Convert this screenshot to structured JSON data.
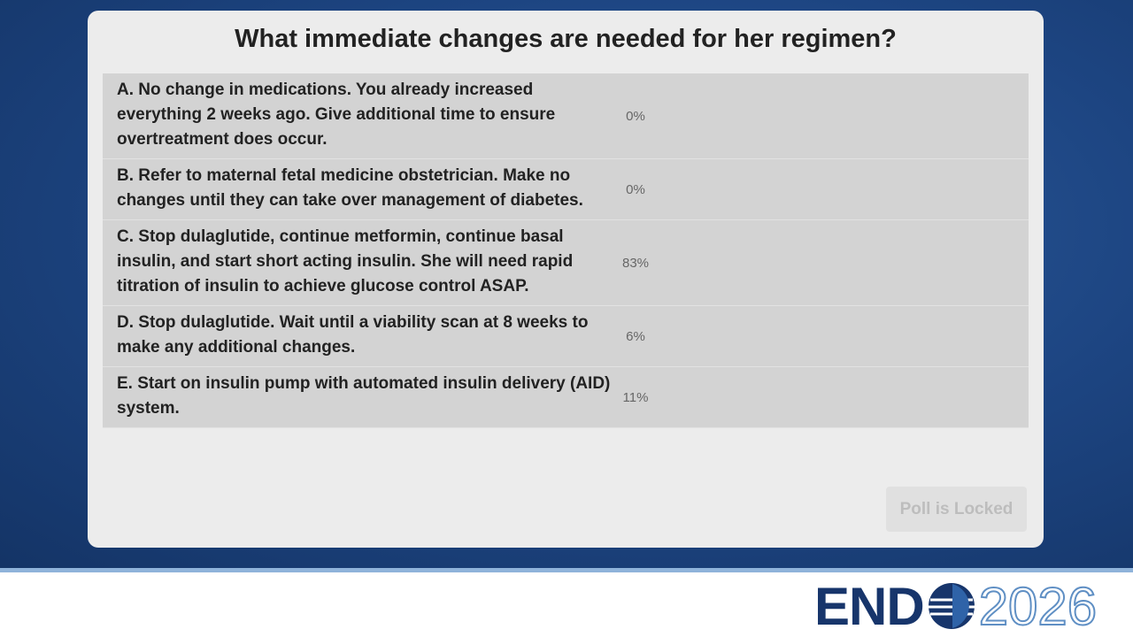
{
  "chart_data": {
    "type": "bar",
    "orientation": "horizontal",
    "title": "What immediate changes are needed for her regimen?",
    "categories": [
      "A. No change in medications. You already increased everything 2 weeks ago. Give additional time to ensure overtreatment does occur.",
      "B. Refer to maternal fetal medicine obstetrician. Make no changes until they can take over management of diabetes.",
      "C. Stop dulaglutide, continue metformin, continue basal insulin, and start short acting insulin. She will need rapid titration of insulin to achieve glucose control ASAP.",
      "D. Stop dulaglutide. Wait until a viability scan at 8 weeks to make any additional changes.",
      "E. Start on insulin pump with automated insulin delivery (AID) system."
    ],
    "values": [
      0,
      0,
      83,
      6,
      11
    ],
    "value_labels": [
      "0%",
      "0%",
      "83%",
      "6%",
      "11%"
    ],
    "colors": [
      "#c9b23a",
      "#2f8a34",
      "#b0223a",
      "#4a22ea",
      "#7a1cb8"
    ]
  },
  "button": "Poll is Locked",
  "logo": {
    "word": "END",
    "year": "2026"
  }
}
